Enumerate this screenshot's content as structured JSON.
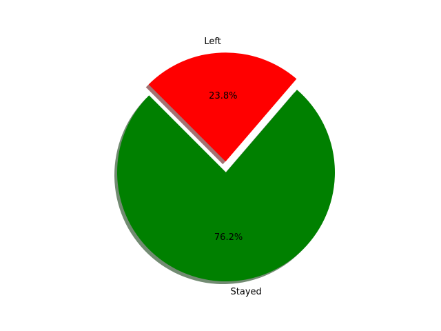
{
  "chart_data": {
    "type": "pie",
    "slices": [
      {
        "label": "Stayed",
        "value": 76.2,
        "pct_label": "76.2%",
        "color": "#008000",
        "exploded": false
      },
      {
        "label": "Left",
        "value": 23.8,
        "pct_label": "23.8%",
        "color": "#ff0000",
        "exploded": true
      }
    ],
    "shadow": true,
    "legend": "none"
  }
}
